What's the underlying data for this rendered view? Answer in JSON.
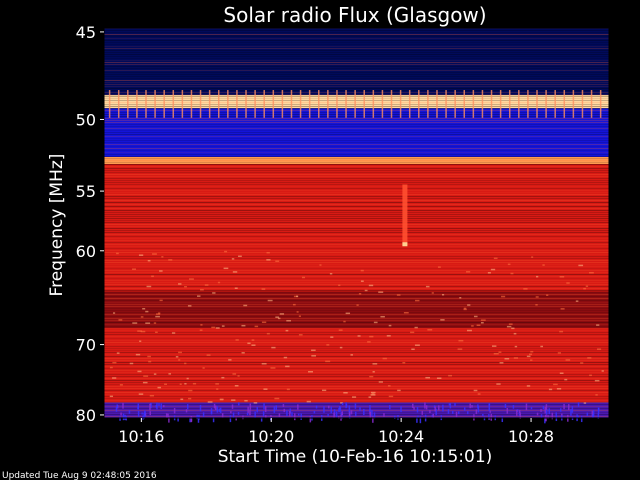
{
  "chart_data": {
    "type": "heatmap",
    "title": "Solar radio Flux (Glasgow)",
    "ylabel": "Frequency [MHz]",
    "xlabel": "Start Time (10-Feb-16 10:15:01)",
    "y_ticks": [
      "45",
      "50",
      "55",
      "60",
      "70",
      "80"
    ],
    "x_ticks": [
      "10:16",
      "10:20",
      "10:24",
      "10:28"
    ],
    "x_axis_labeled_times_min": [
      1,
      5,
      9,
      13
    ],
    "y_scale": "reciprocal",
    "colormap": [
      "#000020",
      "#1a1acc",
      "#5020a0",
      "#8a0a0a",
      "#d01818",
      "#ff3010",
      "#ff8030",
      "#ffd090"
    ],
    "bands": [
      {
        "freq_mhz": [
          44.8,
          45.2
        ],
        "level": "dark blue"
      },
      {
        "freq_mhz": [
          45.2,
          48.5
        ],
        "level": "dark blue"
      },
      {
        "freq_mhz": [
          48.5,
          49.3
        ],
        "level": "bright orange/white"
      },
      {
        "freq_mhz": [
          49.3,
          52.5
        ],
        "level": "blue"
      },
      {
        "freq_mhz": [
          52.5,
          53.0
        ],
        "level": "bright orange"
      },
      {
        "freq_mhz": [
          53.0,
          64.0
        ],
        "level": "red"
      },
      {
        "freq_mhz": [
          64.0,
          68.0
        ],
        "level": "dark red"
      },
      {
        "freq_mhz": [
          68.0,
          78.0
        ],
        "level": "red"
      },
      {
        "freq_mhz": [
          78.0,
          80.5
        ],
        "level": "purple/blue"
      }
    ],
    "features": [
      {
        "time_min": 9.1,
        "freq_mhz": [
          54.5,
          59.5
        ],
        "description": "narrow bright vertical streak"
      }
    ]
  },
  "footer": {
    "updated": "Updated Tue Aug  9 02:48:05 2016"
  }
}
